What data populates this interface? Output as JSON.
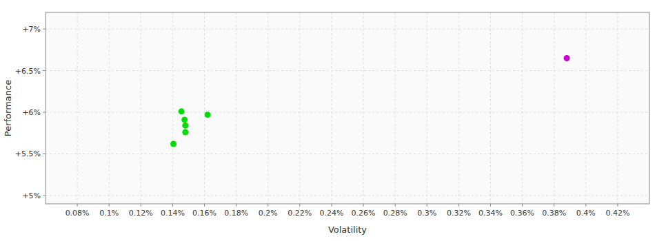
{
  "chart_data": {
    "type": "scatter",
    "xlabel": "Volatility",
    "ylabel": "Performance",
    "xlim": [
      0.06,
      0.44
    ],
    "ylim": [
      0.049,
      0.072
    ],
    "xticks": [
      {
        "value": 0.08,
        "label": "0.08%"
      },
      {
        "value": 0.1,
        "label": "0.1%"
      },
      {
        "value": 0.12,
        "label": "0.12%"
      },
      {
        "value": 0.14,
        "label": "0.14%"
      },
      {
        "value": 0.16,
        "label": "0.16%"
      },
      {
        "value": 0.18,
        "label": "0.18%"
      },
      {
        "value": 0.2,
        "label": "0.2%"
      },
      {
        "value": 0.22,
        "label": "0.22%"
      },
      {
        "value": 0.24,
        "label": "0.24%"
      },
      {
        "value": 0.26,
        "label": "0.26%"
      },
      {
        "value": 0.28,
        "label": "0.28%"
      },
      {
        "value": 0.3,
        "label": "0.3%"
      },
      {
        "value": 0.32,
        "label": "0.32%"
      },
      {
        "value": 0.34,
        "label": "0.34%"
      },
      {
        "value": 0.36,
        "label": "0.36%"
      },
      {
        "value": 0.38,
        "label": "0.38%"
      },
      {
        "value": 0.4,
        "label": "0.4%"
      },
      {
        "value": 0.42,
        "label": "0.42%"
      }
    ],
    "yticks": [
      {
        "value": 0.05,
        "label": "+5%"
      },
      {
        "value": 0.055,
        "label": "+5.5%"
      },
      {
        "value": 0.06,
        "label": "+6%"
      },
      {
        "value": 0.065,
        "label": "+6.5%"
      },
      {
        "value": 0.07,
        "label": "+7%"
      }
    ],
    "grid": true,
    "series": [
      {
        "color": "#00dd00",
        "x": [
          0.1455,
          0.1475,
          0.148,
          0.148,
          0.1405,
          0.162
        ],
        "values": [
          0.0601,
          0.0591,
          0.0584,
          0.0576,
          0.0562,
          0.0597
        ]
      },
      {
        "color": "#cc00cc",
        "x": [
          0.388
        ],
        "values": [
          0.0665
        ]
      }
    ]
  }
}
